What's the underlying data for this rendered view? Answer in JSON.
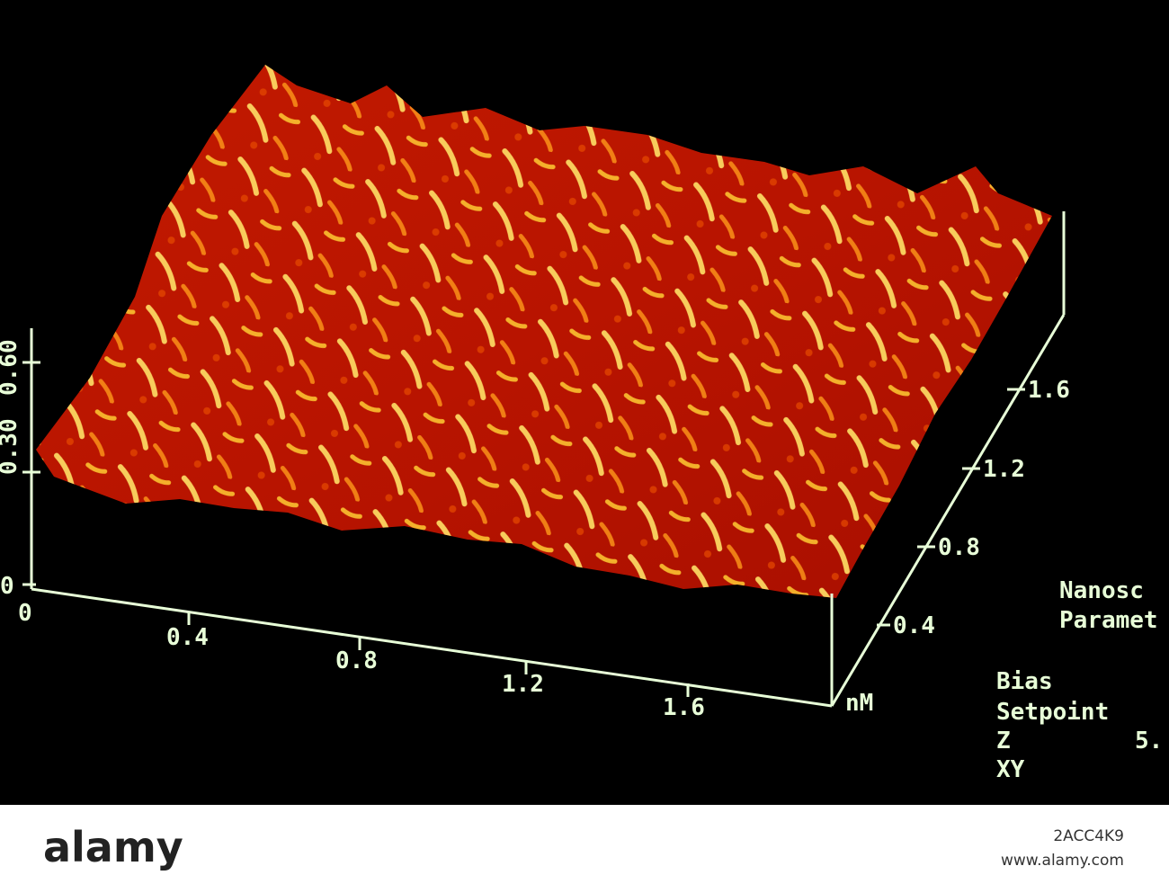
{
  "z_axis": {
    "ticks": [
      "0",
      "0.30",
      "0.60"
    ]
  },
  "x_axis": {
    "ticks": [
      "0",
      "0.4",
      "0.8",
      "1.2",
      "1.6"
    ],
    "unit": "nM"
  },
  "y_axis": {
    "ticks": [
      "0.4",
      "0.8",
      "1.2",
      "1.6"
    ]
  },
  "panel": {
    "title": [
      "Nanosc",
      "Paramet"
    ],
    "rows": [
      "Bias",
      "Setpoint",
      "Z",
      "XY"
    ],
    "value": "5."
  },
  "watermark": {
    "logo": "alamy",
    "id": "2ACC4K9",
    "site": "www.alamy.com"
  }
}
